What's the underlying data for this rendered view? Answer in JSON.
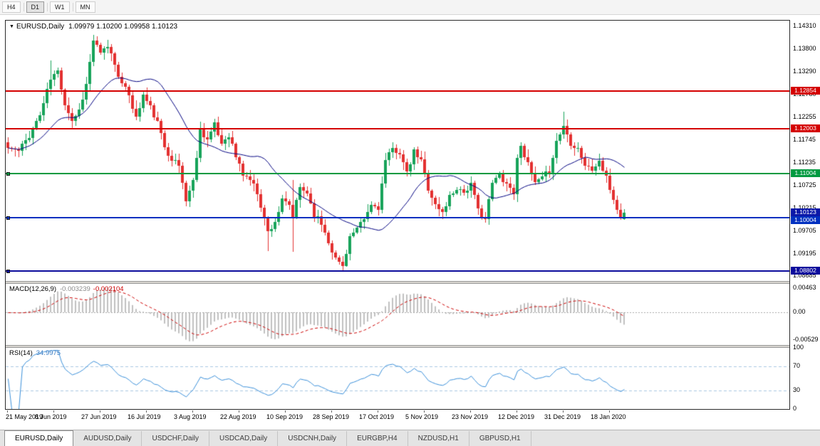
{
  "toolbar": {
    "timeframes": [
      "H4",
      "D1",
      "W1",
      "MN"
    ]
  },
  "chart_header": {
    "collapse_icon": "▼",
    "symbol": "EURUSD,Daily",
    "ohlc": "1.09979 1.10200 1.09958 1.10123"
  },
  "macd_panel": {
    "title": "MACD(12,26,9)",
    "value_main": "-0.003239",
    "value_signal": "-0.002104",
    "ticks": [
      "0.00463",
      "0.00",
      "-0.00529"
    ]
  },
  "rsi_panel": {
    "title": "RSI(14)",
    "value": "34.9975",
    "ticks": [
      "100",
      "70",
      "30",
      "0"
    ]
  },
  "tabs": [
    "EURUSD,Daily",
    "AUDUSD,Daily",
    "USDCHF,Daily",
    "USDCAD,Daily",
    "USDCNH,Daily",
    "EURGBP,H4",
    "NZDUSD,H1",
    "GBPUSD,H1"
  ],
  "colors": {
    "bull": "#17a35a",
    "bear": "#e33030",
    "ma": "#000080",
    "macd_hist": "#c0c0c0",
    "macd_signal": "#cc0000",
    "zero_line": "#a8a8a8",
    "rsi_line": "#3a8fd9",
    "rsi_levels": "#a9c7e2"
  },
  "chart_data": {
    "type": "candlestick",
    "symbol": "EURUSD",
    "timeframe": "Daily",
    "candle_count": 174,
    "candle_step": 5,
    "seed": 11,
    "noise": 0.0014,
    "y_axis": {
      "scale_max": 1.1444,
      "scale_min": 1.0858,
      "ticks": [
        "1.14310",
        "1.13800",
        "1.13290",
        "1.12780",
        "1.12255",
        "1.11745",
        "1.11235",
        "1.10725",
        "1.10215",
        "1.09705",
        "1.09195",
        "1.08685"
      ]
    },
    "x_tick_labels": [
      {
        "i": 0,
        "label": "21 May 2019"
      },
      {
        "i": 13,
        "label": "8 Jun 2019"
      },
      {
        "i": 26,
        "label": "27 Jun 2019"
      },
      {
        "i": 39,
        "label": "16 Jul 2019"
      },
      {
        "i": 52,
        "label": "3 Aug 2019"
      },
      {
        "i": 65,
        "label": "22 Aug 2019"
      },
      {
        "i": 78,
        "label": "10 Sep 2019"
      },
      {
        "i": 91,
        "label": "28 Sep 2019"
      },
      {
        "i": 104,
        "label": "17 Oct 2019"
      },
      {
        "i": 117,
        "label": "5 Nov 2019"
      },
      {
        "i": 130,
        "label": "23 Nov 2019"
      },
      {
        "i": 143,
        "label": "12 Dec 2019"
      },
      {
        "i": 156,
        "label": "31 Dec 2019"
      },
      {
        "i": 169,
        "label": "18 Jan 2020"
      }
    ],
    "close_anchors": [
      [
        0,
        1.1158
      ],
      [
        3,
        1.115
      ],
      [
        6,
        1.1186
      ],
      [
        9,
        1.1232
      ],
      [
        12,
        1.1312
      ],
      [
        14,
        1.133
      ],
      [
        16,
        1.1258
      ],
      [
        18,
        1.122
      ],
      [
        20,
        1.1242
      ],
      [
        22,
        1.13
      ],
      [
        24,
        1.14
      ],
      [
        26,
        1.1368
      ],
      [
        28,
        1.1388
      ],
      [
        30,
        1.1348
      ],
      [
        32,
        1.13
      ],
      [
        34,
        1.1278
      ],
      [
        36,
        1.1224
      ],
      [
        38,
        1.1276
      ],
      [
        40,
        1.1248
      ],
      [
        42,
        1.1214
      ],
      [
        44,
        1.116
      ],
      [
        46,
        1.1134
      ],
      [
        48,
        1.1118
      ],
      [
        50,
        1.104
      ],
      [
        52,
        1.1082
      ],
      [
        54,
        1.1198
      ],
      [
        56,
        1.1178
      ],
      [
        58,
        1.1208
      ],
      [
        60,
        1.1168
      ],
      [
        62,
        1.1188
      ],
      [
        64,
        1.1138
      ],
      [
        66,
        1.1098
      ],
      [
        68,
        1.1088
      ],
      [
        70,
        1.1058
      ],
      [
        72,
        1.0998
      ],
      [
        73,
        1.0968
      ],
      [
        75,
        1.0992
      ],
      [
        77,
        1.1038
      ],
      [
        79,
        1.1028
      ],
      [
        80,
        1.1002
      ],
      [
        82,
        1.1068
      ],
      [
        84,
        1.1058
      ],
      [
        86,
        1.1008
      ],
      [
        88,
        1.0988
      ],
      [
        90,
        1.0948
      ],
      [
        92,
        1.0908
      ],
      [
        94,
        1.0892
      ],
      [
        96,
        1.0958
      ],
      [
        98,
        1.0972
      ],
      [
        100,
        1.0996
      ],
      [
        102,
        1.1028
      ],
      [
        104,
        1.1024
      ],
      [
        106,
        1.1128
      ],
      [
        108,
        1.1154
      ],
      [
        110,
        1.1148
      ],
      [
        112,
        1.1098
      ],
      [
        114,
        1.1148
      ],
      [
        116,
        1.1128
      ],
      [
        118,
        1.1068
      ],
      [
        120,
        1.1028
      ],
      [
        122,
        1.1012
      ],
      [
        124,
        1.1048
      ],
      [
        126,
        1.1068
      ],
      [
        128,
        1.1058
      ],
      [
        130,
        1.1074
      ],
      [
        132,
        1.1018
      ],
      [
        134,
        1.0998
      ],
      [
        136,
        1.1078
      ],
      [
        138,
        1.1098
      ],
      [
        140,
        1.1078
      ],
      [
        142,
        1.1058
      ],
      [
        143,
        1.113
      ],
      [
        144,
        1.1168
      ],
      [
        146,
        1.1118
      ],
      [
        148,
        1.1078
      ],
      [
        150,
        1.1088
      ],
      [
        152,
        1.1108
      ],
      [
        154,
        1.1172
      ],
      [
        156,
        1.1208
      ],
      [
        158,
        1.1168
      ],
      [
        160,
        1.1158
      ],
      [
        162,
        1.1118
      ],
      [
        164,
        1.1108
      ],
      [
        166,
        1.1128
      ],
      [
        168,
        1.1088
      ],
      [
        170,
        1.1042
      ],
      [
        171,
        1.1022
      ],
      [
        172,
        1.0998
      ],
      [
        173,
        1.10123
      ]
    ],
    "wick_overrides": [
      {
        "i": 12,
        "high": 1.1355
      },
      {
        "i": 24,
        "high": 1.1412
      },
      {
        "i": 28,
        "high": 1.14
      },
      {
        "i": 50,
        "low": 1.1026
      },
      {
        "i": 73,
        "low": 1.0926
      },
      {
        "i": 80,
        "low": 1.0925,
        "high": 1.1086
      },
      {
        "i": 93,
        "low": 1.0895
      },
      {
        "i": 94,
        "low": 1.0879
      },
      {
        "i": 156,
        "high": 1.1239
      }
    ],
    "last_candle": {
      "open": 1.09979,
      "high": 1.102,
      "low": 1.09958,
      "close": 1.10123
    },
    "moving_average": {
      "period": 20
    },
    "horizontal_lines": [
      {
        "price": 1.12854,
        "label": "1.12854",
        "color": "#d40000",
        "width": 2,
        "handle": false
      },
      {
        "price": 1.12003,
        "label": "1.12003",
        "color": "#d40000",
        "width": 2,
        "handle": false
      },
      {
        "price": 1.11004,
        "label": "1.11004",
        "color": "#009a40",
        "width": 2,
        "handle": true
      },
      {
        "price": 1.10004,
        "label": "1.10004",
        "color": "#0030c0",
        "width": 2,
        "handle": true
      },
      {
        "price": 1.08802,
        "label": "1.08802",
        "color": "#0b0b9c",
        "width": 2,
        "handle": true
      }
    ],
    "current_price": {
      "price": 1.10123,
      "label": "1.10123",
      "color": "#0b18a8"
    },
    "indicators": {
      "macd": {
        "params": [
          12,
          26,
          9
        ],
        "axis_max": 0.0055,
        "axis_min": -0.0063
      },
      "rsi": {
        "period": 14,
        "levels": [
          70,
          30
        ],
        "axis_max": 100,
        "axis_min": 0
      }
    }
  }
}
